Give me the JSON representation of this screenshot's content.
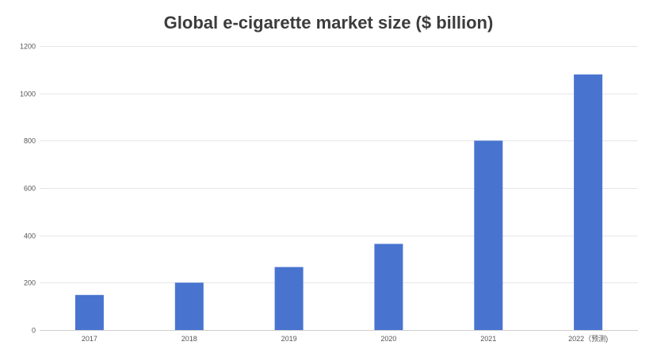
{
  "chart_data": {
    "type": "bar",
    "title": "Global e-cigarette market size ($ billion)",
    "xlabel": "",
    "ylabel": "",
    "categories": [
      "2017",
      "2018",
      "2019",
      "2020",
      "2021",
      "2022（预测)"
    ],
    "values": [
      148,
      200,
      266,
      364,
      800,
      1080
    ],
    "ylim": [
      0,
      1200
    ],
    "yticks": [
      0,
      200,
      400,
      600,
      800,
      1000,
      1200
    ],
    "grid": true,
    "legend": "none",
    "bar_color": "#4874d0"
  }
}
